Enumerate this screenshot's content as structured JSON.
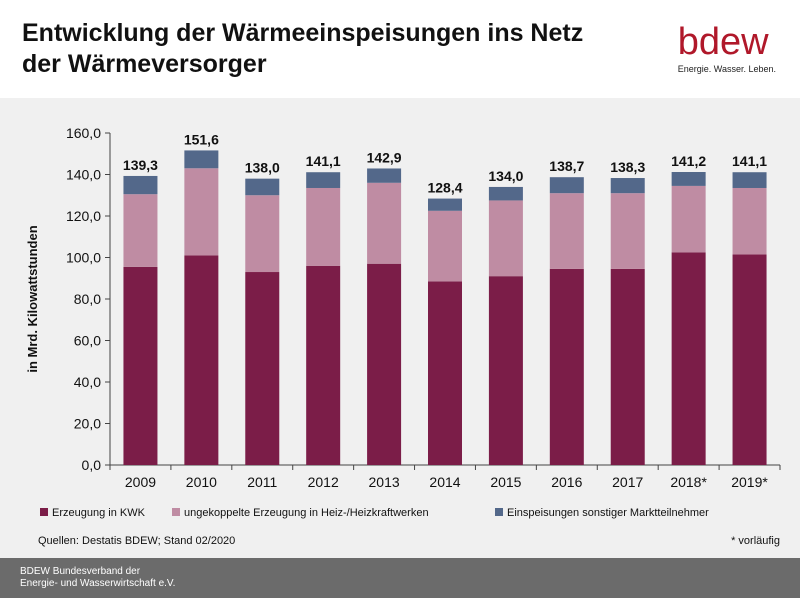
{
  "header": {
    "title_line1": "Entwicklung der Wärmeeinspeisungen ins Netz",
    "title_line2": "der Wärmeversorger",
    "logo_text": "bdew",
    "logo_tagline": "Energie. Wasser. Leben."
  },
  "chart_data": {
    "type": "bar",
    "stacked": true,
    "categories": [
      "2009",
      "2010",
      "2011",
      "2012",
      "2013",
      "2014",
      "2015",
      "2016",
      "2017",
      "2018*",
      "2019*"
    ],
    "series": [
      {
        "name": "Erzeugung in KWK",
        "color": "#7b1d48",
        "values": [
          95.5,
          101.0,
          93.0,
          96.0,
          97.0,
          88.5,
          91.0,
          94.5,
          94.5,
          102.5,
          101.5
        ]
      },
      {
        "name": "ungekoppelte Erzeugung in Heiz-/Heizkraftwerken",
        "color": "#bf8ca3",
        "values": [
          35.0,
          42.0,
          37.0,
          37.5,
          39.0,
          34.0,
          36.5,
          36.5,
          36.5,
          32.0,
          32.0
        ]
      },
      {
        "name": "Einspeisungen sonstiger Marktteilnehmer",
        "color": "#53688a",
        "values": [
          8.8,
          8.6,
          8.0,
          7.6,
          6.9,
          5.9,
          6.5,
          7.7,
          7.3,
          6.7,
          7.6
        ]
      }
    ],
    "totals": [
      "139,3",
      "151,6",
      "138,0",
      "141,1",
      "142,9",
      "128,4",
      "134,0",
      "138,7",
      "138,3",
      "141,2",
      "141,1"
    ],
    "ylabel": "in Mrd. Kilowattstunden",
    "ylim": [
      0,
      160
    ],
    "yticks": [
      0,
      20,
      40,
      60,
      80,
      100,
      120,
      140,
      160
    ],
    "ytick_labels": [
      "0,0",
      "20,0",
      "40,0",
      "60,0",
      "80,0",
      "100,0",
      "120,0",
      "140,0",
      "160,0"
    ],
    "legend_position": "bottom"
  },
  "notes": {
    "source": "Quellen: Destatis BDEW; Stand 02/2020",
    "footnote": "* vorläufig"
  },
  "footer": {
    "line1": "BDEW Bundesverband der",
    "line2": "Energie- und Wasserwirtschaft e.V."
  }
}
